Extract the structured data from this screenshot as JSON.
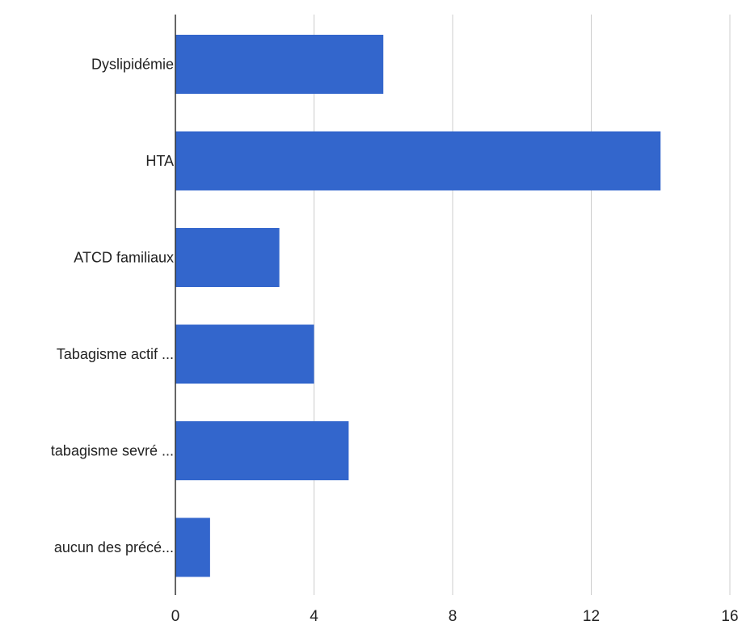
{
  "chart_data": {
    "type": "bar",
    "orientation": "horizontal",
    "categories": [
      "Dyslipidémie",
      "HTA",
      "ATCD familiaux",
      "Tabagisme actif ...",
      "tabagisme sevré ...",
      "aucun des précé..."
    ],
    "values": [
      6,
      14,
      3,
      4,
      5,
      1
    ],
    "x_ticks": [
      "0",
      "4",
      "8",
      "12",
      "16"
    ],
    "xlim": [
      0,
      16
    ],
    "grid": true,
    "title": "",
    "xlabel": "",
    "ylabel": "",
    "colors": {
      "bar": "#3366CC",
      "grid": "#CCCCCC",
      "axis": "#333333"
    }
  }
}
